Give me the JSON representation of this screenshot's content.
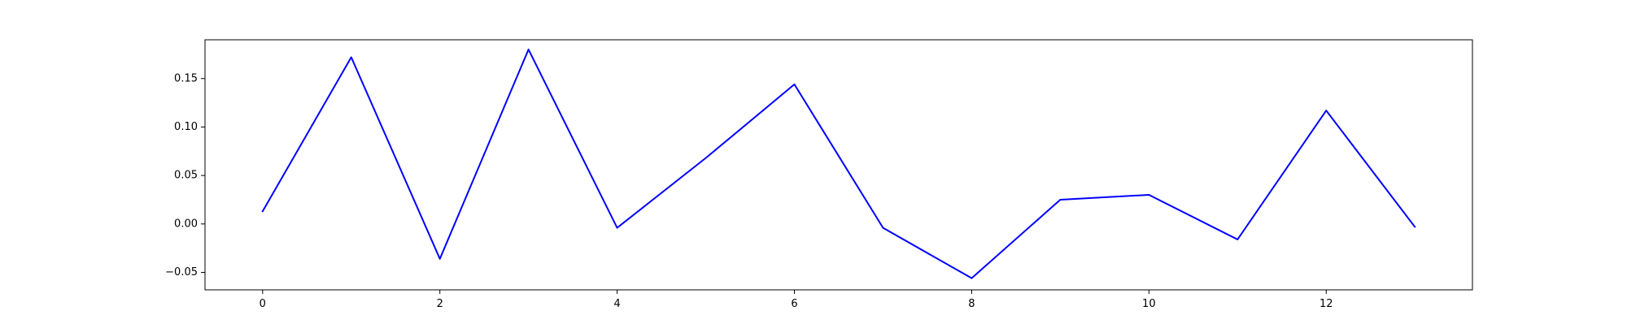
{
  "chart_data": {
    "type": "line",
    "title": "",
    "xlabel": "",
    "ylabel": "",
    "xlim": [
      -0.65,
      13.65
    ],
    "ylim": [
      -0.068,
      0.19
    ],
    "xticks": [
      0,
      2,
      4,
      6,
      8,
      10,
      12
    ],
    "xtick_labels": [
      "0",
      "2",
      "4",
      "6",
      "8",
      "10",
      "12"
    ],
    "yticks": [
      -0.05,
      0.0,
      0.05,
      0.1,
      0.15
    ],
    "ytick_labels": [
      "−0.05",
      "0.00",
      "0.05",
      "0.10",
      "0.15"
    ],
    "grid": false,
    "legend": "none",
    "series": [
      {
        "color": "#0000ff",
        "x": [
          0,
          1,
          2,
          3,
          4,
          5,
          6,
          7,
          8,
          9,
          10,
          11,
          12,
          13
        ],
        "values": [
          0.013,
          0.172,
          -0.036,
          0.18,
          -0.004,
          0.068,
          0.144,
          -0.004,
          -0.056,
          0.025,
          0.03,
          -0.016,
          0.117,
          -0.003
        ]
      }
    ]
  }
}
